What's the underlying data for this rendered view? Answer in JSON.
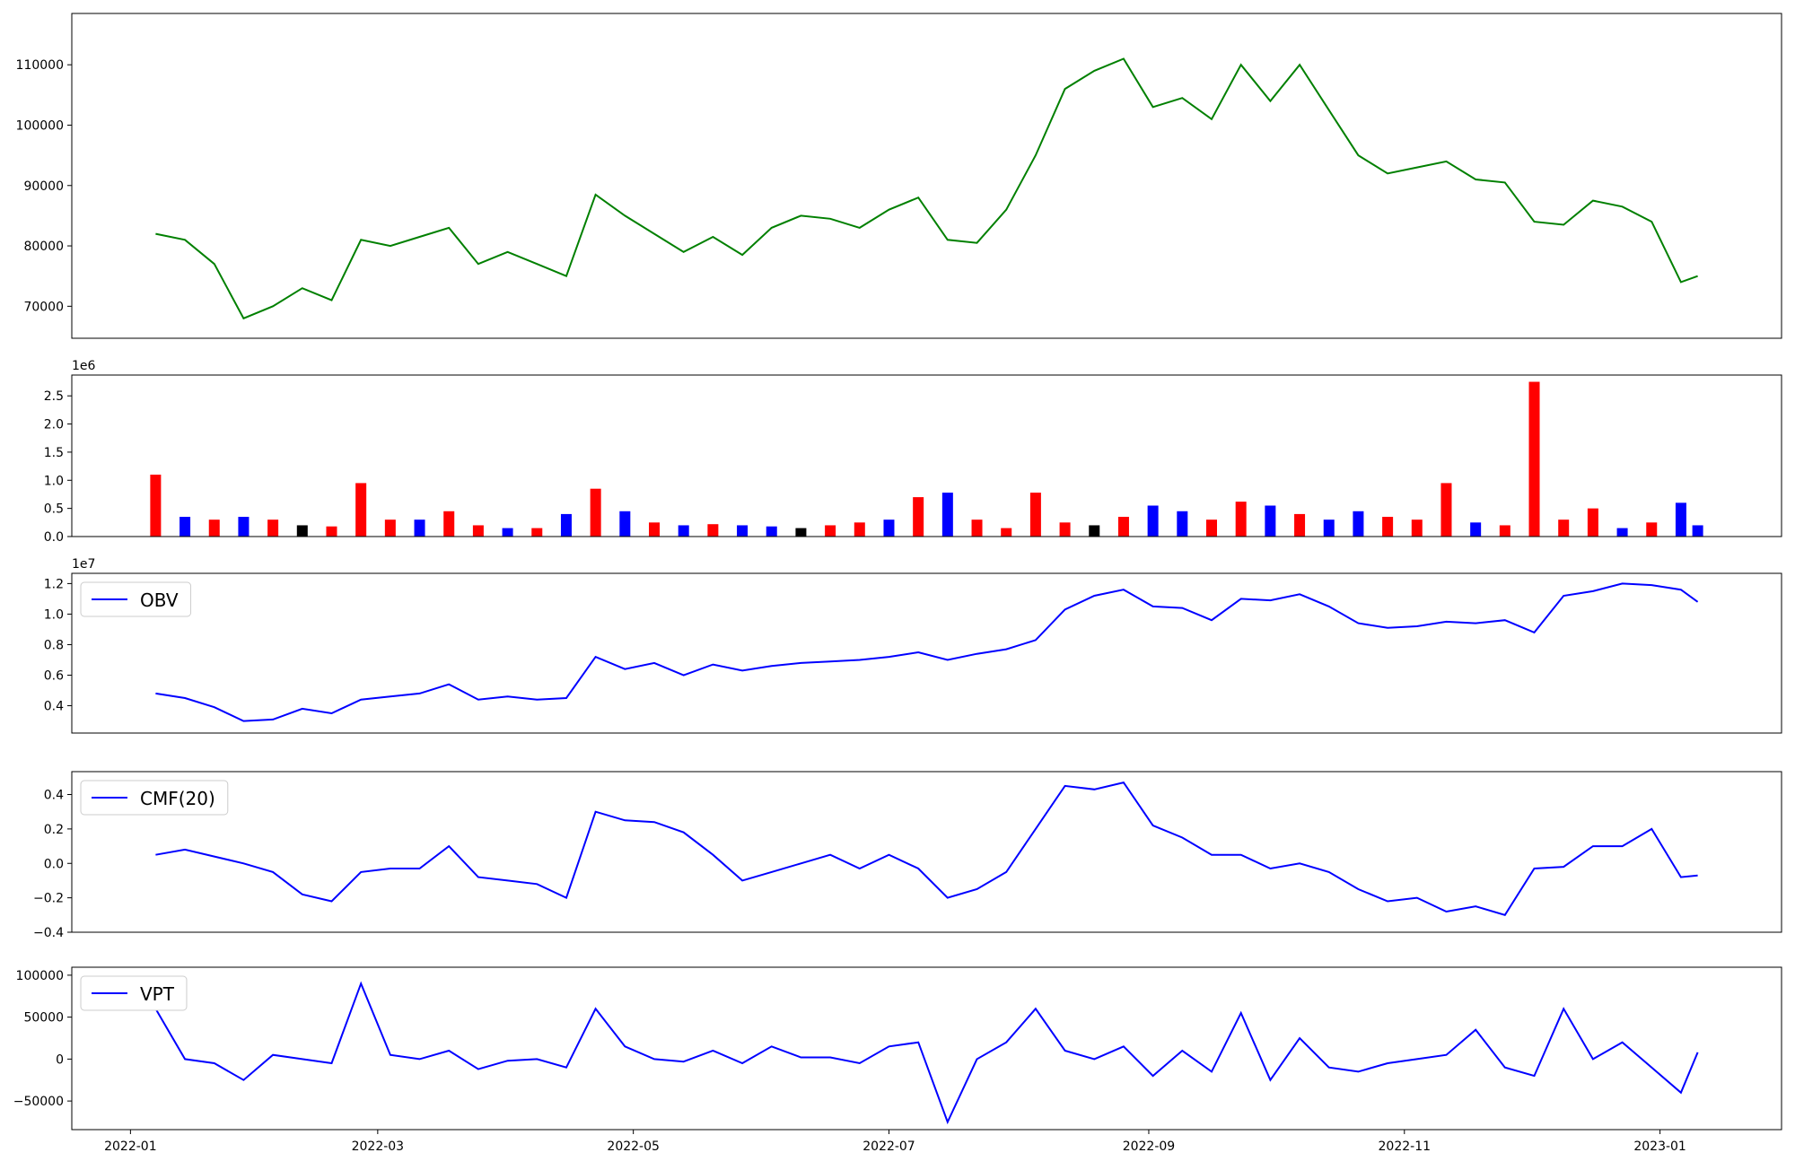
{
  "chart_data": [
    {
      "type": "line",
      "x": [
        "2022-01-07",
        "2022-01-14",
        "2022-01-21",
        "2022-01-28",
        "2022-02-04",
        "2022-02-11",
        "2022-02-18",
        "2022-02-25",
        "2022-03-04",
        "2022-03-11",
        "2022-03-18",
        "2022-03-25",
        "2022-04-01",
        "2022-04-08",
        "2022-04-15",
        "2022-04-22",
        "2022-04-29",
        "2022-05-06",
        "2022-05-13",
        "2022-05-20",
        "2022-05-27",
        "2022-06-03",
        "2022-06-10",
        "2022-06-17",
        "2022-06-24",
        "2022-07-01",
        "2022-07-08",
        "2022-07-15",
        "2022-07-22",
        "2022-07-29",
        "2022-08-05",
        "2022-08-12",
        "2022-08-19",
        "2022-08-26",
        "2022-09-02",
        "2022-09-09",
        "2022-09-16",
        "2022-09-23",
        "2022-09-30",
        "2022-10-07",
        "2022-10-14",
        "2022-10-21",
        "2022-10-28",
        "2022-11-04",
        "2022-11-11",
        "2022-11-18",
        "2022-11-25",
        "2022-12-02",
        "2022-12-09",
        "2022-12-16",
        "2022-12-23",
        "2022-12-30",
        "2023-01-06",
        "2023-01-10"
      ],
      "series": [
        {
          "color": "#008000",
          "values": [
            82000,
            81000,
            77000,
            68000,
            70000,
            73000,
            71000,
            81000,
            80000,
            81500,
            83000,
            77000,
            79000,
            77000,
            75000,
            88500,
            85000,
            82000,
            79000,
            81500,
            78500,
            83000,
            85000,
            84500,
            83000,
            86000,
            88000,
            81000,
            80500,
            86000,
            95000,
            106000,
            109000,
            111000,
            103000,
            104500,
            101000,
            110000,
            104000,
            110000,
            102500,
            95000,
            92000,
            93000,
            94000,
            91000,
            90500,
            84000,
            83500,
            87500,
            86500,
            84000,
            74000,
            75000
          ]
        }
      ],
      "xlim": [
        "2021-12-18",
        "2023-01-30"
      ],
      "ylim": [
        64700,
        118500
      ],
      "yticks": [
        70000,
        80000,
        90000,
        100000,
        110000
      ]
    },
    {
      "type": "bar",
      "offset_text": "1e6",
      "x": [
        "2022-01-07",
        "2022-01-14",
        "2022-01-21",
        "2022-01-28",
        "2022-02-04",
        "2022-02-11",
        "2022-02-18",
        "2022-02-25",
        "2022-03-04",
        "2022-03-11",
        "2022-03-18",
        "2022-03-25",
        "2022-04-01",
        "2022-04-08",
        "2022-04-15",
        "2022-04-22",
        "2022-04-29",
        "2022-05-06",
        "2022-05-13",
        "2022-05-20",
        "2022-05-27",
        "2022-06-03",
        "2022-06-10",
        "2022-06-17",
        "2022-06-24",
        "2022-07-01",
        "2022-07-08",
        "2022-07-15",
        "2022-07-22",
        "2022-07-29",
        "2022-08-05",
        "2022-08-12",
        "2022-08-19",
        "2022-08-26",
        "2022-09-02",
        "2022-09-09",
        "2022-09-16",
        "2022-09-23",
        "2022-09-30",
        "2022-10-07",
        "2022-10-14",
        "2022-10-21",
        "2022-10-28",
        "2022-11-04",
        "2022-11-11",
        "2022-11-18",
        "2022-11-25",
        "2022-12-02",
        "2022-12-09",
        "2022-12-16",
        "2022-12-23",
        "2022-12-30",
        "2023-01-06",
        "2023-01-10"
      ],
      "values": [
        1100000,
        350000,
        300000,
        350000,
        300000,
        200000,
        180000,
        950000,
        300000,
        300000,
        450000,
        200000,
        150000,
        150000,
        400000,
        850000,
        450000,
        250000,
        200000,
        220000,
        200000,
        180000,
        150000,
        200000,
        250000,
        300000,
        700000,
        780000,
        300000,
        150000,
        780000,
        250000,
        200000,
        350000,
        550000,
        450000,
        300000,
        620000,
        550000,
        400000,
        300000,
        450000,
        350000,
        300000,
        950000,
        250000,
        200000,
        2750000,
        300000,
        500000,
        150000,
        250000,
        600000,
        200000
      ],
      "colors": [
        "red",
        "blue",
        "red",
        "blue",
        "red",
        "black",
        "red",
        "red",
        "red",
        "blue",
        "red",
        "red",
        "blue",
        "red",
        "blue",
        "red",
        "blue",
        "red",
        "blue",
        "red",
        "blue",
        "blue",
        "black",
        "red",
        "red",
        "blue",
        "red",
        "blue",
        "red",
        "red",
        "red",
        "red",
        "black",
        "red",
        "blue",
        "blue",
        "red",
        "red",
        "blue",
        "red",
        "blue",
        "blue",
        "red",
        "red",
        "red",
        "blue",
        "red",
        "red",
        "red",
        "red",
        "blue",
        "red",
        "blue",
        "blue"
      ],
      "xlim": [
        "2021-12-18",
        "2023-01-30"
      ],
      "ylim": [
        0,
        2870000
      ],
      "yticks": [
        {
          "value": 0,
          "label": "0.0"
        },
        {
          "value": 500000,
          "label": "0.5"
        },
        {
          "value": 1000000,
          "label": "1.0"
        },
        {
          "value": 1500000,
          "label": "1.5"
        },
        {
          "value": 2000000,
          "label": "2.0"
        },
        {
          "value": 2500000,
          "label": "2.5"
        }
      ]
    },
    {
      "type": "line",
      "offset_text": "1e7",
      "x": [
        "2022-01-07",
        "2022-01-14",
        "2022-01-21",
        "2022-01-28",
        "2022-02-04",
        "2022-02-11",
        "2022-02-18",
        "2022-02-25",
        "2022-03-04",
        "2022-03-11",
        "2022-03-18",
        "2022-03-25",
        "2022-04-01",
        "2022-04-08",
        "2022-04-15",
        "2022-04-22",
        "2022-04-29",
        "2022-05-06",
        "2022-05-13",
        "2022-05-20",
        "2022-05-27",
        "2022-06-03",
        "2022-06-10",
        "2022-06-17",
        "2022-06-24",
        "2022-07-01",
        "2022-07-08",
        "2022-07-15",
        "2022-07-22",
        "2022-07-29",
        "2022-08-05",
        "2022-08-12",
        "2022-08-19",
        "2022-08-26",
        "2022-09-02",
        "2022-09-09",
        "2022-09-16",
        "2022-09-23",
        "2022-09-30",
        "2022-10-07",
        "2022-10-14",
        "2022-10-21",
        "2022-10-28",
        "2022-11-04",
        "2022-11-11",
        "2022-11-18",
        "2022-11-25",
        "2022-12-02",
        "2022-12-09",
        "2022-12-16",
        "2022-12-23",
        "2022-12-30",
        "2023-01-06",
        "2023-01-10"
      ],
      "series": [
        {
          "name": "OBV",
          "color": "#0000ff",
          "values": [
            4800000,
            4500000,
            3900000,
            3000000,
            3100000,
            3800000,
            3500000,
            4400000,
            4600000,
            4800000,
            5400000,
            4400000,
            4600000,
            4400000,
            4500000,
            7200000,
            6400000,
            6800000,
            6000000,
            6700000,
            6300000,
            6600000,
            6800000,
            6900000,
            7000000,
            7200000,
            7500000,
            7000000,
            7400000,
            7700000,
            8300000,
            10300000,
            11200000,
            11600000,
            10500000,
            10400000,
            9600000,
            11000000,
            10900000,
            11300000,
            10500000,
            9400000,
            9100000,
            9200000,
            9500000,
            9400000,
            9600000,
            8800000,
            11200000,
            11500000,
            12000000,
            11900000,
            11600000,
            10800000
          ]
        }
      ],
      "xlim": [
        "2021-12-18",
        "2023-01-30"
      ],
      "ylim": [
        2210000,
        12670000
      ],
      "yticks": [
        {
          "value": 4000000,
          "label": "0.4"
        },
        {
          "value": 6000000,
          "label": "0.6"
        },
        {
          "value": 8000000,
          "label": "0.8"
        },
        {
          "value": 10000000,
          "label": "1.0"
        },
        {
          "value": 12000000,
          "label": "1.2"
        }
      ],
      "legend": "upper left"
    },
    {
      "type": "line",
      "x": [
        "2022-01-07",
        "2022-01-14",
        "2022-01-21",
        "2022-01-28",
        "2022-02-04",
        "2022-02-11",
        "2022-02-18",
        "2022-02-25",
        "2022-03-04",
        "2022-03-11",
        "2022-03-18",
        "2022-03-25",
        "2022-04-01",
        "2022-04-08",
        "2022-04-15",
        "2022-04-22",
        "2022-04-29",
        "2022-05-06",
        "2022-05-13",
        "2022-05-20",
        "2022-05-27",
        "2022-06-03",
        "2022-06-10",
        "2022-06-17",
        "2022-06-24",
        "2022-07-01",
        "2022-07-08",
        "2022-07-15",
        "2022-07-22",
        "2022-07-29",
        "2022-08-05",
        "2022-08-12",
        "2022-08-19",
        "2022-08-26",
        "2022-09-02",
        "2022-09-09",
        "2022-09-16",
        "2022-09-23",
        "2022-09-30",
        "2022-10-07",
        "2022-10-14",
        "2022-10-21",
        "2022-10-28",
        "2022-11-04",
        "2022-11-11",
        "2022-11-18",
        "2022-11-25",
        "2022-12-02",
        "2022-12-09",
        "2022-12-16",
        "2022-12-23",
        "2022-12-30",
        "2023-01-06",
        "2023-01-10"
      ],
      "series": [
        {
          "name": "CMF(20)",
          "color": "#0000ff",
          "values": [
            0.05,
            0.08,
            0.04,
            0.0,
            -0.05,
            -0.18,
            -0.22,
            -0.05,
            -0.03,
            -0.03,
            0.1,
            -0.08,
            -0.1,
            -0.12,
            -0.2,
            0.3,
            0.25,
            0.24,
            0.18,
            0.05,
            -0.1,
            -0.05,
            0.0,
            0.05,
            -0.03,
            0.05,
            -0.03,
            -0.2,
            -0.15,
            -0.05,
            0.2,
            0.45,
            0.43,
            0.47,
            0.22,
            0.15,
            0.05,
            0.05,
            -0.03,
            0.0,
            -0.05,
            -0.15,
            -0.22,
            -0.2,
            -0.28,
            -0.25,
            -0.3,
            -0.03,
            -0.02,
            0.1,
            0.1,
            0.2,
            -0.08,
            -0.07
          ]
        }
      ],
      "xlim": [
        "2021-12-18",
        "2023-01-30"
      ],
      "ylim": [
        -0.4,
        0.533
      ],
      "yticks": [
        {
          "value": -0.4,
          "label": "−0.4"
        },
        {
          "value": -0.2,
          "label": "−0.2"
        },
        {
          "value": 0,
          "label": "0.0"
        },
        0.2,
        0.4
      ],
      "legend": "upper left"
    },
    {
      "type": "line",
      "x": [
        "2022-01-07",
        "2022-01-14",
        "2022-01-21",
        "2022-01-28",
        "2022-02-04",
        "2022-02-11",
        "2022-02-18",
        "2022-02-25",
        "2022-03-04",
        "2022-03-11",
        "2022-03-18",
        "2022-03-25",
        "2022-04-01",
        "2022-04-08",
        "2022-04-15",
        "2022-04-22",
        "2022-04-29",
        "2022-05-06",
        "2022-05-13",
        "2022-05-20",
        "2022-05-27",
        "2022-06-03",
        "2022-06-10",
        "2022-06-17",
        "2022-06-24",
        "2022-07-01",
        "2022-07-08",
        "2022-07-15",
        "2022-07-22",
        "2022-07-29",
        "2022-08-05",
        "2022-08-12",
        "2022-08-19",
        "2022-08-26",
        "2022-09-02",
        "2022-09-09",
        "2022-09-16",
        "2022-09-23",
        "2022-09-30",
        "2022-10-07",
        "2022-10-14",
        "2022-10-21",
        "2022-10-28",
        "2022-11-04",
        "2022-11-11",
        "2022-11-18",
        "2022-11-25",
        "2022-12-02",
        "2022-12-09",
        "2022-12-16",
        "2022-12-23",
        "2022-12-30",
        "2023-01-06",
        "2023-01-10"
      ],
      "series": [
        {
          "name": "VPT",
          "color": "#0000ff",
          "values": [
            60000,
            0,
            -5000,
            -25000,
            5000,
            0,
            -5000,
            90000,
            5000,
            0,
            10000,
            -12000,
            -2000,
            0,
            -10000,
            60000,
            15000,
            0,
            -3000,
            10000,
            -5000,
            15000,
            2000,
            2000,
            -5000,
            15000,
            20000,
            -75000,
            0,
            20000,
            60000,
            10000,
            0,
            15000,
            -20000,
            10000,
            -15000,
            55000,
            -25000,
            25000,
            -10000,
            -15000,
            -5000,
            0,
            5000,
            35000,
            -10000,
            -20000,
            60000,
            0,
            20000,
            -10000,
            -40000,
            8000
          ]
        }
      ],
      "xlim": [
        "2021-12-18",
        "2023-01-30"
      ],
      "ylim": [
        -84100,
        109500
      ],
      "yticks": [
        {
          "value": -50000,
          "label": "−50000"
        },
        0,
        50000,
        100000
      ],
      "xticks": [
        {
          "value": "2022-01-01",
          "label": "2022-01"
        },
        {
          "value": "2022-03-01",
          "label": "2022-03"
        },
        {
          "value": "2022-05-01",
          "label": "2022-05"
        },
        {
          "value": "2022-07-01",
          "label": "2022-07"
        },
        {
          "value": "2022-09-01",
          "label": "2022-09"
        },
        {
          "value": "2022-11-01",
          "label": "2022-11"
        },
        {
          "value": "2023-01-01",
          "label": "2023-01"
        }
      ],
      "legend": "upper left"
    }
  ]
}
